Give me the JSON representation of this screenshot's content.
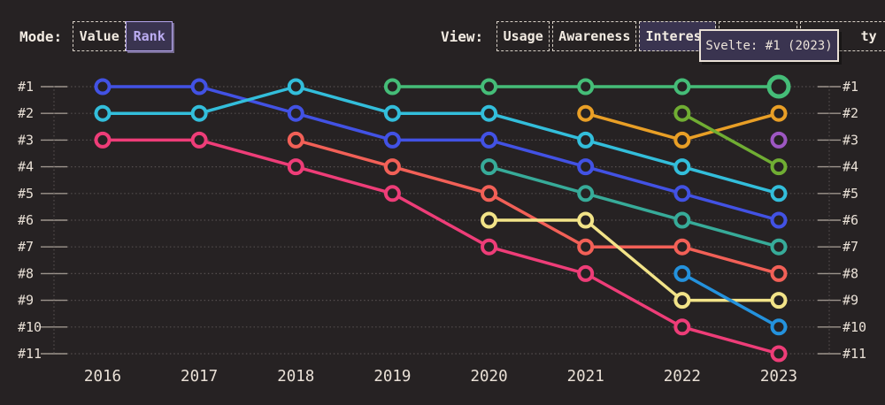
{
  "controls": {
    "mode_label": "Mode:",
    "mode_options": [
      {
        "label": "Value",
        "active": false
      },
      {
        "label": "Rank",
        "active": true
      }
    ],
    "view_label": "View:",
    "view_options": [
      {
        "label": "Usage",
        "active": false
      },
      {
        "label": "Awareness",
        "active": false
      },
      {
        "label": "Interest",
        "active": true
      },
      {
        "label": "",
        "active": false
      },
      {
        "label": "ty",
        "active": false
      }
    ]
  },
  "tooltip": {
    "text": "Svelte: #1 (2023)"
  },
  "chart_data": {
    "type": "line",
    "subtype": "bump-rank-chart",
    "x_categories": [
      "2016",
      "2017",
      "2018",
      "2019",
      "2020",
      "2021",
      "2022",
      "2023"
    ],
    "y_axis_labels": [
      "#1",
      "#2",
      "#3",
      "#4",
      "#5",
      "#6",
      "#7",
      "#8",
      "#9",
      "#10",
      "#11"
    ],
    "y_axis_range": [
      1,
      11
    ],
    "grid": "dotted horizontal rows, dashed vertical edge axes, ticks at each rank",
    "highlight": {
      "series_id": "svelte-green",
      "x_index": 7,
      "tooltip": "Svelte: #1 (2023)"
    },
    "series": [
      {
        "id": "blue",
        "color": "#4252e4",
        "ranks": [
          1,
          1,
          2,
          3,
          3,
          4,
          5,
          6
        ]
      },
      {
        "id": "cyan",
        "color": "#33bedb",
        "ranks": [
          2,
          2,
          1,
          2,
          2,
          3,
          4,
          5
        ]
      },
      {
        "id": "magenta-pink",
        "color": "#ee3d78",
        "ranks": [
          3,
          3,
          4,
          5,
          7,
          8,
          10,
          11
        ]
      },
      {
        "id": "coral",
        "color": "#f26057",
        "ranks": [
          null,
          null,
          3,
          4,
          5,
          7,
          7,
          8
        ]
      },
      {
        "id": "svelte-green",
        "color": "#45bd78",
        "ranks": [
          null,
          null,
          null,
          1,
          1,
          1,
          1,
          1
        ]
      },
      {
        "id": "teal",
        "color": "#37ab99",
        "ranks": [
          null,
          null,
          null,
          null,
          4,
          5,
          6,
          7
        ]
      },
      {
        "id": "yellow",
        "color": "#f2e388",
        "ranks": [
          null,
          null,
          null,
          null,
          6,
          6,
          9,
          9
        ]
      },
      {
        "id": "orange",
        "color": "#e99f26",
        "ranks": [
          null,
          null,
          null,
          null,
          null,
          2,
          3,
          2
        ]
      },
      {
        "id": "lime",
        "color": "#70ad33",
        "ranks": [
          null,
          null,
          null,
          null,
          null,
          null,
          2,
          4
        ]
      },
      {
        "id": "sky-blue",
        "color": "#2492dd",
        "ranks": [
          null,
          null,
          null,
          null,
          null,
          null,
          8,
          10
        ]
      },
      {
        "id": "purple",
        "color": "#9d57c2",
        "ranks": [
          null,
          null,
          null,
          null,
          null,
          null,
          null,
          3
        ]
      }
    ],
    "colors": {
      "background": "#262223",
      "grid": "#544e4e",
      "tick": "#9d958d",
      "text": "#e9e0d6",
      "accent_purple": "#b4a5ec",
      "panel_fill": "#3a3450"
    }
  }
}
